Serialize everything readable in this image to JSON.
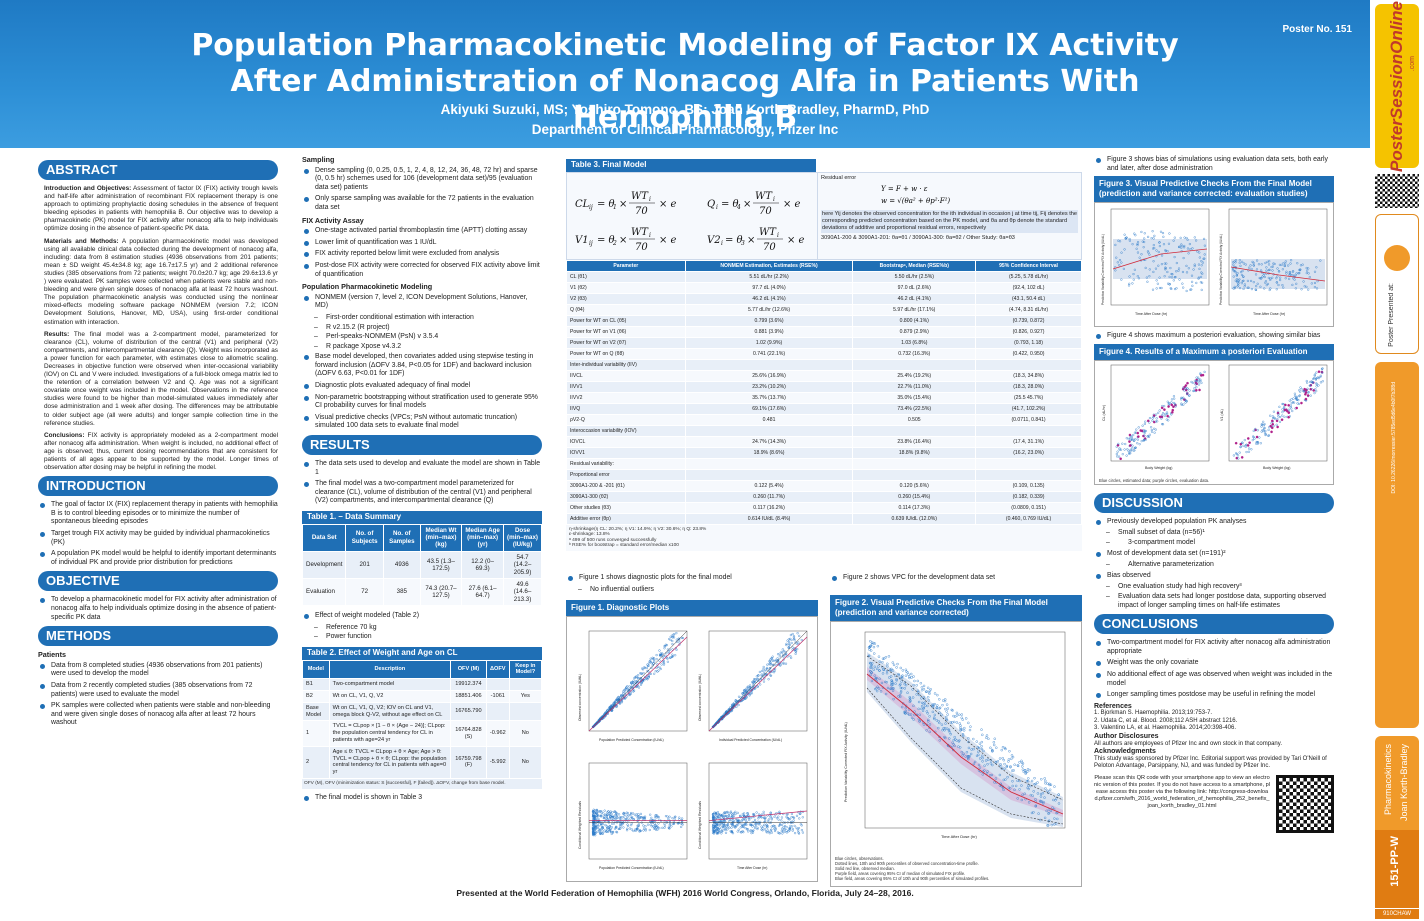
{
  "header": {
    "title": "Population Pharmacokinetic Modeling of Factor IX Activity After Administration of Nonacog Alfa in Patients With Hemophilia B",
    "authors": "Akiyuki Suzuki, MS; Yoshiro Tomono, BS; Joan Korth-Bradley, PharmD, PhD",
    "department": "Department of Clinical Pharmacology, Pfizer Inc",
    "poster_no": "Poster No. 151"
  },
  "abstract": {
    "heading": "ABSTRACT",
    "intro_label": "Introduction and Objectives:",
    "intro_text": " Assessment of factor IX (FIX) activity trough levels and half-life after administration of recombinant FIX replacement therapy is one approach to optimizing prophylactic dosing schedules in the absence of frequent bleeding episodes in patients with hemophilia B. Our objective was to develop a pharmacokinetic (PK) model for FIX activity after nonacog alfa to help individuals optimize dosing in the absence of patient-specific PK data.",
    "methods_label": "Materials and Methods:",
    "methods_text": " A population pharmacokinetic model was developed using all available clinical data collected during the development of nonacog alfa, including: data from 8 estimation studies (4936 observations from 201 patients; mean ± SD weight 45.4±34.8 kg; age 16.7±17.5 yr) and 2 additional reference studies (385 observations from 72 patients; weight 70.0±20.7 kg; age 29.6±13.6 yr ) were evaluated. PK samples were collected when patients were stable and non-bleeding and were given single doses of nonacog alfa at least 72 hours washout. The population pharmacokinetic analysis was conducted using the nonlinear mixed-effects modeling software package NONMEM (version 7.2; ICON Development Solutions, Hanover, MD, USA), using first-order conditional estimation with interaction.",
    "results_label": "Results:",
    "results_text": " The final model was a 2-compartment model, parameterized for clearance (CL), volume of distribution of the central (V1) and peripheral (V2) compartments, and intercompartmental clearance (Q). Weight was incorporated as a power function for each parameter, with estimates close to allometric scaling. Decreases in objective function were observed when inter-occasional variability (IOV) on CL and V were included. Investigations of a full-block omega matrix led to the retention of a correlation between V2 and Q. Age was not a significant covariate once weight was included in the model. Observations in the reference studies were found to be higher than model-simulated values immediately after dose administration and 1 week after dosing. The differences may be attributable to older subject age (all were adults) and longer sample collection time in the reference studies.",
    "concl_label": "Conclusions:",
    "concl_text": " FIX activity is appropriately modeled as a 2-compartment model after nonacog alfa administration. When weight is included, no additional effect of age is observed; thus, current dosing recommendations that are consistent for patients of all ages appear to be supported by the model. Longer times of observation after dosing may be helpful in refining the model."
  },
  "introduction": {
    "heading": "INTRODUCTION",
    "items": [
      "The goal of factor IX (FIX) replacement therapy in patients with hemophilia B is to control bleeding episodes or to minimize the number of spontaneous bleeding episodes",
      "Target trough FIX activity may be guided by individual pharmacokinetics (PK)",
      "A population PK model would be helpful to identify important determinants of individual PK and provide prior distribution for predictions"
    ]
  },
  "objective": {
    "heading": "OBJECTIVE",
    "items": [
      "To develop a pharmacokinetic model for FIX activity after administration of nonacog alfa to help individuals optimize dosing in the absence of patient-specific PK data"
    ]
  },
  "methods": {
    "heading": "METHODS",
    "patients_label": "Patients",
    "patients": [
      "Data from 8 completed studies (4936 observations from 201 patients) were used to develop the model",
      "Data from 2 recently completed studies (385 observations from 72 patients) were used to evaluate the model",
      "PK samples were collected when patients were stable and non-bleeding and were given single doses of nonacog alfa after at least 72 hours washout"
    ],
    "sampling_label": "Sampling",
    "sampling": [
      "Dense sampling (0, 0.25, 0.5, 1, 2, 4, 8, 12, 24, 36, 48, 72 hr) and sparse (0, 0.5 hr) schemes used for 106 (development data set)/95 (evaluation data set) patients",
      "Only sparse sampling was available for the 72 patients in the evaluation data set"
    ],
    "assay_label": "FIX Activity Assay",
    "assay": [
      "One-stage activated partial thromboplastin time (APTT) clotting assay",
      "Lower limit of quantification was 1 IU/dL",
      "FIX activity reported below limit were excluded from analysis",
      "Post-dose FIX activity were corrected for observed FIX activity above limit of quantification"
    ],
    "popk_label": "Population Pharmacokinetic Modeling",
    "popk_main": "NONMEM (version 7, level 2, ICON Development Solutions, Hanover, MD)",
    "popk_sub": [
      "First-order conditional estimation with interaction",
      "R v2.15.2 (R project)",
      "Perl-speaks-NONMEM (PsN) v 3.5.4",
      "R package Xpose v4.3.2"
    ],
    "popk_more": [
      "Base model developed, then covariates added using stepwise testing in forward inclusion (ΔOFV 3.84, P<0.05 for 1DF) and backward inclusion (ΔOFV 6.63, P<0.01 for 1DF)",
      "Diagnostic plots evaluated adequacy of final model",
      "Non-parametric bootstrapping without stratification used to generate 95% CI probability curves for final models",
      "Visual predictive checks (VPCs; PsN without automatic truncation) simulated 100 data sets to evaluate final model"
    ]
  },
  "results": {
    "heading": "RESULTS",
    "items": [
      "The data sets used to develop and evaluate the model are shown in Table 1",
      "The final model was a two-compartment model parameterized for clearance (CL), volume of distribution of the central (V1) and peripheral (V2) compartments, and intercompartmental clearance (Q)"
    ],
    "weight_item": "Effect of weight modeled (Table 2)",
    "weight_sub": [
      "Reference 70 kg",
      "Power function"
    ],
    "final_item": "The final model is shown in Table 3"
  },
  "table1": {
    "caption": "Table 1. – Data Summary",
    "headers": [
      "Data Set",
      "No. of Subjects",
      "No. of Samples",
      "Median Wt (min–max) (kg)",
      "Median Age (min–max) (yr)",
      "Dose (min–max) (IU/kg)"
    ],
    "rows": [
      [
        "Development",
        "201",
        "4936",
        "43.5 (1.3–172.5)",
        "12.2 (0–69.3)",
        "54.7 (14.2–205.9)"
      ],
      [
        "Evaluation",
        "72",
        "385",
        "74.3 (20.7–127.5)",
        "27.6 (6.1–64.7)",
        "49.6 (14.6–213.3)"
      ]
    ]
  },
  "table2": {
    "caption": "Table 2. Effect of Weight and Age on CL",
    "headers": [
      "Model",
      "Description",
      "OFV (M)",
      "ΔOFV",
      "Keep in Model?"
    ],
    "rows": [
      [
        "B1",
        "Two-compartment model",
        "19912.374",
        "",
        ""
      ],
      [
        "B2",
        "Wt on CL, V1, Q, V2",
        "18851.406",
        "-1061",
        "Yes"
      ],
      [
        "Base Model",
        "Wt on CL, V1, Q, V2; IOV on CL and V1, omega block Q-V2, without age effect on CL",
        "16765.790",
        "",
        ""
      ],
      [
        "1",
        "TVCL = CLpop × [1 − θ × (Age − 24)]; CLpop: the population central tendency for CL in patients with age=24 yr",
        "16764.828 (S)",
        "-0.962",
        "No"
      ],
      [
        "2",
        "Age ≤ θ: TVCL = CLpop + θ × Age; Age > θ: TVCL = CLpop + θ × θ; CLpop: the population central tendency for CL in patients with age=0 yr",
        "16759.798 (F)",
        "-5.992",
        "No"
      ]
    ],
    "footnote": "OFV (M), OFV (minimization status: S [successful], F [failed]). ΔOFV, change from base model."
  },
  "table3": {
    "caption": "Table 3. Final Model",
    "residual_label": "Residual error",
    "residual_text": "here Yij denotes the observed concentration for the ith individual in occasion j at time tij, Fij denotes the corresponding predicted concentration based on the PK model, and θa and θp denote the standard deviations of additive and proportional residual errors, respectively",
    "study_text": "3090A1-200 & 3090A1-201: θa=θ1 / 3090A1-300: θa=θ2 / Other Study: θa=θ3",
    "headers": [
      "Parameter",
      "NONMEM Estimation, Estimates (RSE%)",
      "Bootstrapᵃ, Median (RSE%b)",
      "95% Confidence Interval"
    ],
    "rows": [
      [
        "CL (θ1)",
        "5.51 dL/hr (2.2%)",
        "5.50 dL/hr (2.5%)",
        "(5.25, 5.78 dL/hr)"
      ],
      [
        "V1 (θ2)",
        "97.7 dL (4.0%)",
        "97.0 dL (2.6%)",
        "(92.4, 102 dL)"
      ],
      [
        "V2 (θ3)",
        "46.2 dL (4.1%)",
        "46.2 dL (4.1%)",
        "(43.1, 50.4 dL)"
      ],
      [
        "Q (θ4)",
        "5.77 dL/hr (12.6%)",
        "5.97 dL/hr (17.1%)",
        "(4.74, 8.31 dL/hr)"
      ],
      [
        "Power for WT on CL (θ5)",
        "0.799 (3.6%)",
        "0.800 (4.1%)",
        "(0.739, 0.872)"
      ],
      [
        "Power for WT on V1 (θ6)",
        "0.881 (3.9%)",
        "0.879 (2.9%)",
        "(0.826, 0.927)"
      ],
      [
        "Power for WT on V2 (θ7)",
        "1.02 (9.9%)",
        "1.03 (6.8%)",
        "(0.793, 1.18)"
      ],
      [
        "Power for WT on Q (θ8)",
        "0.741 (22.1%)",
        "0.732 (16.3%)",
        "(0.422, 0.950)"
      ],
      [
        "Inter-individual variability (IIV)",
        "",
        "",
        ""
      ],
      [
        "IIVCL",
        "25.6% (16.9%)",
        "25.4% (19.2%)",
        "(18.3, 34.8%)"
      ],
      [
        "IIVV1",
        "23.2% (10.2%)",
        "22.7% (11.0%)",
        "(18.3, 28.0%)"
      ],
      [
        "IIVV2",
        "35.7% (13.7%)",
        "35.0% (15.4%)",
        "(25.5 45.7%)"
      ],
      [
        "IIVQ",
        "69.1% (17.6%)",
        "73.4% (22.5%)",
        "(41.7, 102.2%)"
      ],
      [
        "ρV2-Q",
        "0.481",
        "0.505",
        "(0.0711, 0.841)"
      ],
      [
        "Interoccasion variability (IOV)",
        "",
        "",
        ""
      ],
      [
        "IOVCL",
        "24.7% (14.3%)",
        "23.8% (16.4%)",
        "(17.4, 31.1%)"
      ],
      [
        "IOVV1",
        "18.9% (8.6%)",
        "18.8% (9.8%)",
        "(16.2, 23.0%)"
      ],
      [
        "Residual variability:",
        "",
        "",
        ""
      ],
      [
        "Proportional error",
        "",
        "",
        ""
      ],
      [
        "3090A1-200 & -201 (θ1)",
        "0.122 (5.4%)",
        "0.120 (5.6%)",
        "(0.109, 0.135)"
      ],
      [
        "3090A1-300 (θ2)",
        "0.260 (11.7%)",
        "0.260 (15.4%)",
        "(0.182, 0.339)"
      ],
      [
        "Other studies (θ3)",
        "0.117 (16.2%)",
        "0.114 (17.3%)",
        "(0.0809, 0.151)"
      ],
      [
        "Additive error (θp)",
        "0.614 IU/dL (8.4%)",
        "0.639 IU/dL (12.0%)",
        "(0.460, 0.769 IU/dL)"
      ]
    ],
    "footnotes": [
      "η-shrinkage(η CL: 20.2%; η V1: 14.9%; η V2: 30.6%; η Q: 23.8%",
      "ε-shrinkage: 13.8%",
      "ᵃ 499 of 500 runs converged successfully",
      "ᵇ RSE% for bootstrap = standard error/median x100"
    ]
  },
  "fig1": {
    "intro": "Figure 1 shows diagnostic plots for the final model",
    "intro_sub": "No influential outliers",
    "caption": "Figure 1. Diagnostic Plots",
    "xl1": "Population Predicted Concentration (IU/dL)",
    "yl1": "Observed concentration (IU/dL)",
    "xl2": "Individual Predicted Concentration (IU/dL)",
    "yl2": "Observed concentration (IU/dL)",
    "xl3": "Population Predicted Concentration (IU/dL)",
    "yl3": "Conditional Weighted Residuals",
    "xl4": "Time After Dose (hr)",
    "yl4": "Conditional Weighted Residuals"
  },
  "fig2": {
    "intro": "Figure 2 shows VPC for the development data set",
    "caption": "Figure 2. Visual Predictive Checks From the Final Model (prediction and variance corrected)",
    "xlabel": "Time After Dose (hr)",
    "ylabel": "Prediction Variability Corrected FIX Activity (IU/dL)",
    "notes": [
      "Blue circles, observations.",
      "Dotted lines, 10th and 90th percentiles of observed concentration-time profile.",
      "Solid red line, observed median.",
      "Purple field, areas covering 95% CI of median of simulated FIX profile.",
      "Blue field, areas covering 95% CI of 10th and 90th percentiles of simulated profiles."
    ]
  },
  "fig3": {
    "intro": "Figure 3 shows bias of simulations using evaluation data sets, both early and later, after dose administration",
    "caption": "Figure 3. Visual Predictive Checks From the Final Model (prediction and variance corrected: evaluation studies)",
    "xlabel": "Time After Dose (hr)",
    "ylabel": "Prediction Variability Corrected FIX Activity (IU/dL)"
  },
  "fig4": {
    "intro": "Figure 4 shows maximum a posteriori evaluation, showing similar bias",
    "caption": "Figure 4. Results of a Maximum a posteriori Evaluation",
    "xlabel": "Body Weight (kg)",
    "ylabel_left": "CL (dL/hr)",
    "ylabel_right": "V1 (dL)",
    "note": "Blue circles, estimated data; purple circles, evaluation data."
  },
  "discussion": {
    "heading": "DISCUSSION",
    "i1": "Previously developed population PK analyses",
    "i1a": "Small subset of data (n=56)¹",
    "i1b": "3-compartment model",
    "i2": "Most of development data set (n=191)²",
    "i2a": "Alternative parameterization",
    "i3": "Bias observed",
    "i3a": "One evaluation study had high recovery³",
    "i3b": "Evaluation data sets had longer postdose data, supporting observed impact of longer sampling times on half-life estimates"
  },
  "conclusions": {
    "heading": "CONCLUSIONS",
    "items": [
      "Two-compartment model for FIX activity after nonacog alfa administration appropriate",
      "Weight was the only covariate",
      "No additional effect of age was observed when weight was included in the model",
      "Longer sampling times postdose may be useful in refining the model"
    ]
  },
  "references": {
    "heading": "References",
    "items": [
      "1. Bjorkman S. Haemophilia. 2013;19:753-7.",
      "2. Udata C, et al. Blood. 2008;112 ASH abstract 1216.",
      "3. Valentino LA, et al. Haemophilia. 2014;20:398-406."
    ],
    "disc_heading": "Author Disclosures",
    "disc_text": "All authors are employees of Pfizer Inc and own stock in that company.",
    "ack_heading": "Acknowledgments",
    "ack_text": "This study was sponsored by Pfizer Inc. Editorial support was provided by Tari O'Neill of Peloton Advantage, Parsippany, NJ, and was funded by Pfizer Inc.",
    "qr_text": "Please scan this QR code with your smartphone app to view an electronic version of this poster. If you do not have access to a smartphone, please access this poster via the following link: http://congress-download.pfizer.com/wfh_2016_world_federation_of_hemophilia_252_benefix_joan_korth_bradley_01.html"
  },
  "footer": "Presented at the World Federation of Hemophilia (WFH) 2016 World Congress, Orlando, Florida, July 24–28, 2016.",
  "sidebar": {
    "logo": "PosterSessionOnline",
    "logo_com": ".com",
    "presented": "Poster Presented at:",
    "doi": "DOI: 10.26226/morressier.5785ed5d6e4b0f7b3f8d",
    "category": "Pharmacokinetics",
    "author": "Joan Korth-Bradley",
    "code": "151-PP-W",
    "id": "910CHAW"
  }
}
